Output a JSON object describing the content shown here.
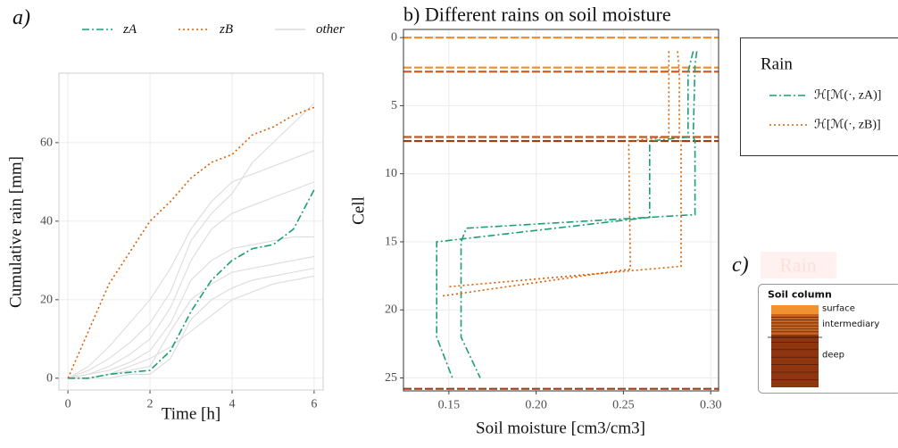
{
  "chart_data": [
    {
      "type": "line",
      "title": "a)",
      "x_label": "Time [h]",
      "y_label": "Cumulative rain [mm]",
      "x": [
        0,
        0.5,
        1,
        1.5,
        2,
        2.5,
        3,
        3.5,
        4,
        4.5,
        5,
        5.5,
        6
      ],
      "series": [
        {
          "name": "zA",
          "color": "#1b9e77",
          "dash": "8 3 2 3",
          "values": [
            0,
            0,
            1,
            1.5,
            2,
            7,
            17,
            25,
            30,
            33,
            34,
            38,
            48
          ]
        },
        {
          "name": "zB",
          "color": "#d95f02",
          "dash": "2 3",
          "values": [
            0,
            12,
            24,
            32,
            40,
            45,
            51,
            55,
            57,
            62,
            64,
            67,
            69
          ]
        },
        {
          "name": "other",
          "color": "#dcdcdc",
          "lines": [
            [
              0,
              0,
              1,
              2,
              3,
              12,
              20,
              24,
              27,
              28,
              29,
              30,
              31
            ],
            [
              0,
              1,
              3,
              6,
              10,
              18,
              30,
              38,
              42,
              44,
              46,
              48,
              50
            ],
            [
              0,
              0,
              0,
              1,
              1,
              5,
              15,
              20,
              23,
              25,
              26,
              27,
              28
            ],
            [
              0,
              2,
              5,
              9,
              14,
              22,
              35,
              42,
              47,
              55,
              60,
              65,
              70
            ],
            [
              0,
              0,
              1,
              3,
              5,
              8,
              12,
              16,
              20,
              22,
              24,
              25,
              26
            ],
            [
              0,
              1,
              2,
              4,
              7,
              14,
              25,
              30,
              33,
              34,
              35,
              36,
              36
            ],
            [
              0,
              3,
              8,
              14,
              20,
              28,
              38,
              45,
              50,
              52,
              54,
              56,
              58
            ]
          ]
        }
      ],
      "xlim": [
        -0.22,
        6.22
      ],
      "xticks": [
        0,
        2,
        4,
        6
      ],
      "ylim": [
        -3,
        77.7
      ],
      "yticks": [
        0,
        20,
        40,
        60
      ],
      "grid": true,
      "legend": "top"
    },
    {
      "type": "line",
      "title": "b) Different rains on soil moisture",
      "x_label": "Soil moisture [cm3/cm3]",
      "y_label": "Cell",
      "series": [
        {
          "name": "ℋ[ℳ(·, zA)]",
          "color": "#1b9e77",
          "dash": "8 3 2 3",
          "lines": [
            {
              "x": [
                0.292,
                0.291,
                0.29,
                0.291,
                0.291,
                0.16,
                0.157,
                0.157,
                0.168
              ],
              "y": [
                1,
                2,
                7.3,
                7.6,
                13,
                14,
                15,
                22,
                25
              ]
            },
            {
              "x": [
                0.29,
                0.287,
                0.287,
                0.265,
                0.265,
                0.143,
                0.143,
                0.152
              ],
              "y": [
                1,
                2.5,
                7.3,
                7.6,
                13.2,
                15,
                22,
                25
              ]
            }
          ]
        },
        {
          "name": "ℋ[ℳ(·, zB)]",
          "color": "#d95f02",
          "dash": "2 3",
          "lines": [
            {
              "x": [
                0.281,
                0.282,
                0.282,
                0.283,
                0.283,
                0.15
              ],
              "y": [
                1,
                2.5,
                7.3,
                7.6,
                16.8,
                18.3
              ]
            },
            {
              "x": [
                0.276,
                0.276,
                0.253,
                0.254,
                0.145
              ],
              "y": [
                1,
                7.3,
                7.6,
                17,
                19
              ]
            }
          ]
        }
      ],
      "hlines": [
        {
          "value": 0,
          "color": "#f28e2b"
        },
        {
          "value": 2.2,
          "color": "#f28e2b"
        },
        {
          "value": 2.5,
          "color": "#c8561a"
        },
        {
          "value": 7.3,
          "color": "#c8561a"
        },
        {
          "value": 7.6,
          "color": "#9c3d12"
        },
        {
          "value": 25.8,
          "color": "#9c3d12"
        }
      ],
      "xlim": [
        0.124,
        0.3045
      ],
      "xticks": [
        0.15,
        {
          "value": 0.2,
          "label": "0.20"
        },
        0.25,
        {
          "value": 0.3,
          "label": "0.30"
        }
      ],
      "ylim": [
        25.95,
        -0.6
      ],
      "yticks": [
        0,
        5,
        10,
        15,
        20,
        25
      ],
      "grid": true,
      "legend": "right",
      "legend_title": "Rain"
    }
  ],
  "panel_c": {
    "label": "c)",
    "faded_title": "Rain",
    "box_title": "Soil column",
    "layers": [
      {
        "name": "surface",
        "color": "#f2922f"
      },
      {
        "name": "intermediary",
        "color": "#c8621f"
      },
      {
        "name": "deep",
        "color": "#8f3510"
      }
    ]
  }
}
